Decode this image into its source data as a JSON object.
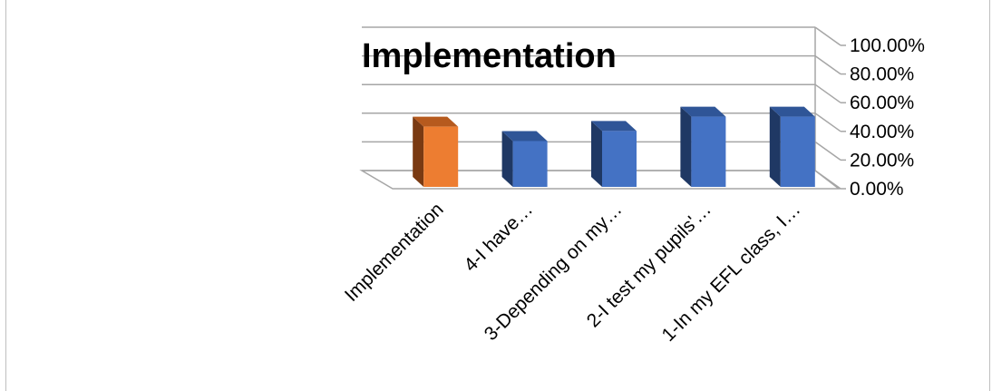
{
  "chart_data": {
    "type": "bar",
    "title": "Implementation",
    "categories": [
      "Implementation",
      "4-I have…",
      "3-Depending on my…",
      "2-I test my pupils'…",
      "1-In my EFL class, I…"
    ],
    "values": [
      42,
      32,
      39,
      49,
      49
    ],
    "ylim": [
      0,
      100
    ],
    "yticks": [
      "0.00%",
      "20.00%",
      "40.00%",
      "60.00%",
      "80.00%",
      "100.00%"
    ],
    "grid": true,
    "legend": "none",
    "colors": {
      "highlight_front": "#ED7D31",
      "highlight_side": "#7A3A12",
      "highlight_top": "#B65A1E",
      "bar_front": "#4472C4",
      "bar_side": "#1F3864",
      "bar_top": "#2F5597",
      "grid": "#a6a6a6"
    }
  }
}
